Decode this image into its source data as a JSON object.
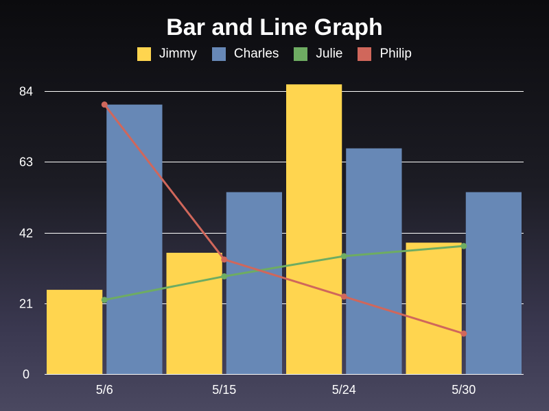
{
  "chart_data": {
    "type": "bar",
    "title": "Bar and Line Graph",
    "categories": [
      "5/6",
      "5/15",
      "5/24",
      "5/30"
    ],
    "ylim": [
      0,
      84
    ],
    "yticks": [
      0,
      21,
      42,
      63,
      84
    ],
    "grid": true,
    "legend_position": "top-center",
    "series": [
      {
        "name": "Jimmy",
        "kind": "bar",
        "color": "#ffd54f",
        "values": [
          25,
          36,
          86,
          39
        ]
      },
      {
        "name": "Charles",
        "kind": "bar",
        "color": "#6788b6",
        "values": [
          80,
          54,
          67,
          54
        ]
      },
      {
        "name": "Julie",
        "kind": "line",
        "color": "#6eac62",
        "values": [
          22,
          29,
          35,
          38
        ]
      },
      {
        "name": "Philip",
        "kind": "line",
        "color": "#d0675b",
        "values": [
          80,
          34,
          23,
          12
        ]
      }
    ]
  }
}
